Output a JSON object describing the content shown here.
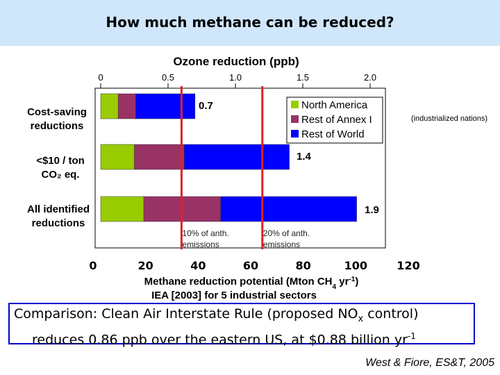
{
  "slide": {
    "title": "How much methane can be reduced?"
  },
  "comparison": {
    "line1_pre": "Comparison: Clean Air Interstate Rule (proposed NO",
    "line1_sub": "x",
    "line1_post": " control)",
    "line2_pre": "reduces 0.86 ppb over the eastern US, at $0.88 billion yr",
    "line2_sup": "-1"
  },
  "citation": "West & Fiore, ES&T, 2005",
  "colors": {
    "title_bar": "#cfe6fb",
    "north_america": "#99cc00",
    "rest_of_annex_1": "#993366",
    "rest_of_world": "#0000ff",
    "reference_lines": "#e0202a",
    "box_border": "#0000cc"
  },
  "chart_data": {
    "type": "bar",
    "orientation": "horizontal",
    "stacked": true,
    "top_axis": {
      "title": "Ozone reduction (ppb)",
      "ticks": [
        "0",
        "0.5",
        "1.0",
        "1.5",
        "2.0"
      ],
      "range": [
        0,
        2.0
      ]
    },
    "bottom_axis": {
      "title_pre": "Methane reduction potential (Mton CH",
      "title_sub": "4",
      "title_mid": " yr",
      "title_sup": "-1",
      "title_post": ")",
      "subtitle": "IEA [2003] for 5 industrial sectors",
      "ticks": [
        "0",
        "20",
        "40",
        "60",
        "80",
        "100",
        "120"
      ],
      "range": [
        0,
        120
      ]
    },
    "categories": [
      [
        "Cost-saving",
        "reductions"
      ],
      [
        "<$10 / ton",
        "CO₂ eq."
      ],
      [
        "All identified",
        "reductions"
      ]
    ],
    "series": [
      {
        "name": "North America",
        "values": [
          0.13,
          0.25,
          0.32
        ]
      },
      {
        "name": "Rest of Annex I",
        "values": [
          0.13,
          0.37,
          0.57
        ]
      },
      {
        "name": "Rest of World",
        "values": [
          0.44,
          0.78,
          1.01
        ]
      }
    ],
    "totals": [
      "0.7",
      "1.4",
      "1.9"
    ],
    "legend_note": "(industrialized nations)",
    "legend_position": "top-right",
    "reference_lines": [
      {
        "value": 0.6,
        "label_lines": [
          "10% of anth.",
          "emissions"
        ]
      },
      {
        "value": 1.2,
        "label_lines": [
          "20% of anth.",
          "emissions"
        ]
      }
    ],
    "grid": false
  }
}
